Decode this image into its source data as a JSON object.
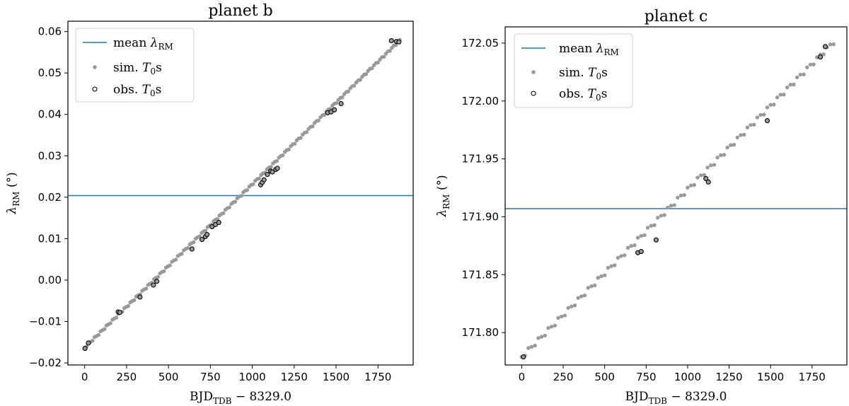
{
  "colors": {
    "mean_line": "#1f77b4",
    "sim_marker": "#999999",
    "obs_marker_edge": "#000000",
    "frame": "#000000"
  },
  "legend": {
    "mean": [
      "mean ",
      "λ",
      "RM"
    ],
    "sim": [
      "sim. ",
      "T",
      "0",
      "s"
    ],
    "obs": [
      "obs. ",
      "T",
      "0",
      "s"
    ]
  },
  "chart_data": [
    {
      "type": "scatter",
      "title": "planet b",
      "xlabel": [
        "BJD",
        "TDB",
        " − 8329.0"
      ],
      "ylabel": [
        "λ",
        "RM",
        " (°)"
      ],
      "xlim": [
        -100,
        1960
      ],
      "ylim": [
        -0.0205,
        0.0625
      ],
      "xticks": [
        0,
        250,
        500,
        750,
        1000,
        1250,
        1500,
        1750
      ],
      "yticks": [
        -0.02,
        -0.01,
        0.0,
        0.01,
        0.02,
        0.03,
        0.04,
        0.05,
        0.06
      ],
      "ytick_labels": [
        "−0.02",
        "−0.01",
        "0.00",
        "0.01",
        "0.02",
        "0.03",
        "0.04",
        "0.05",
        "0.06"
      ],
      "legend_position": "upper-left",
      "mean_line": 0.0204,
      "line": {
        "x0": 0,
        "y0": -0.0163,
        "x1": 1880,
        "y1": 0.0577
      },
      "sim_x_range": [
        0,
        1880
      ],
      "sim_count": 160,
      "sim_jitter": 0.0004,
      "obs_x": [
        2,
        22,
        200,
        210,
        330,
        410,
        430,
        640,
        700,
        720,
        730,
        760,
        780,
        800,
        1050,
        1060,
        1070,
        1090,
        1110,
        1120,
        1140,
        1150,
        1450,
        1470,
        1490,
        1530,
        1830,
        1860,
        1875
      ],
      "obs_y": [
        -0.0165,
        -0.0152,
        -0.0077,
        -0.0078,
        -0.0041,
        -0.0012,
        -0.0003,
        0.0075,
        0.0098,
        0.0105,
        0.011,
        0.0129,
        0.0134,
        0.0139,
        0.023,
        0.0236,
        0.0242,
        0.0255,
        0.0263,
        0.0261,
        0.0267,
        0.027,
        0.0404,
        0.0406,
        0.0411,
        0.0426,
        0.0578,
        0.0576,
        0.0575
      ]
    },
    {
      "type": "scatter",
      "title": "planet c",
      "xlabel": [
        "BJD",
        "TDB",
        " − 8329.0"
      ],
      "ylabel": [
        "λ",
        "RM",
        " (°)"
      ],
      "xlim": [
        -100,
        1960
      ],
      "ylim": [
        171.772,
        172.064
      ],
      "xticks": [
        0,
        250,
        500,
        750,
        1000,
        1250,
        1500,
        1750
      ],
      "yticks": [
        171.8,
        171.85,
        171.9,
        171.95,
        172.0,
        172.05
      ],
      "ytick_labels": [
        "171.80",
        "171.85",
        "171.90",
        "171.95",
        "172.00",
        "172.05"
      ],
      "legend_position": "upper-left",
      "mean_line": 171.907,
      "line": {
        "x0": 0,
        "y0": 171.779,
        "x1": 1880,
        "y1": 172.05
      },
      "sim_x_range": [
        0,
        1880
      ],
      "sim_count": 95,
      "sim_jitter": 0.0035,
      "obs_x": [
        10,
        700,
        720,
        810,
        1110,
        1125,
        1480,
        1800,
        1830
      ],
      "obs_y": [
        171.779,
        171.869,
        171.87,
        171.88,
        171.933,
        171.93,
        171.983,
        172.038,
        172.047
      ]
    }
  ]
}
